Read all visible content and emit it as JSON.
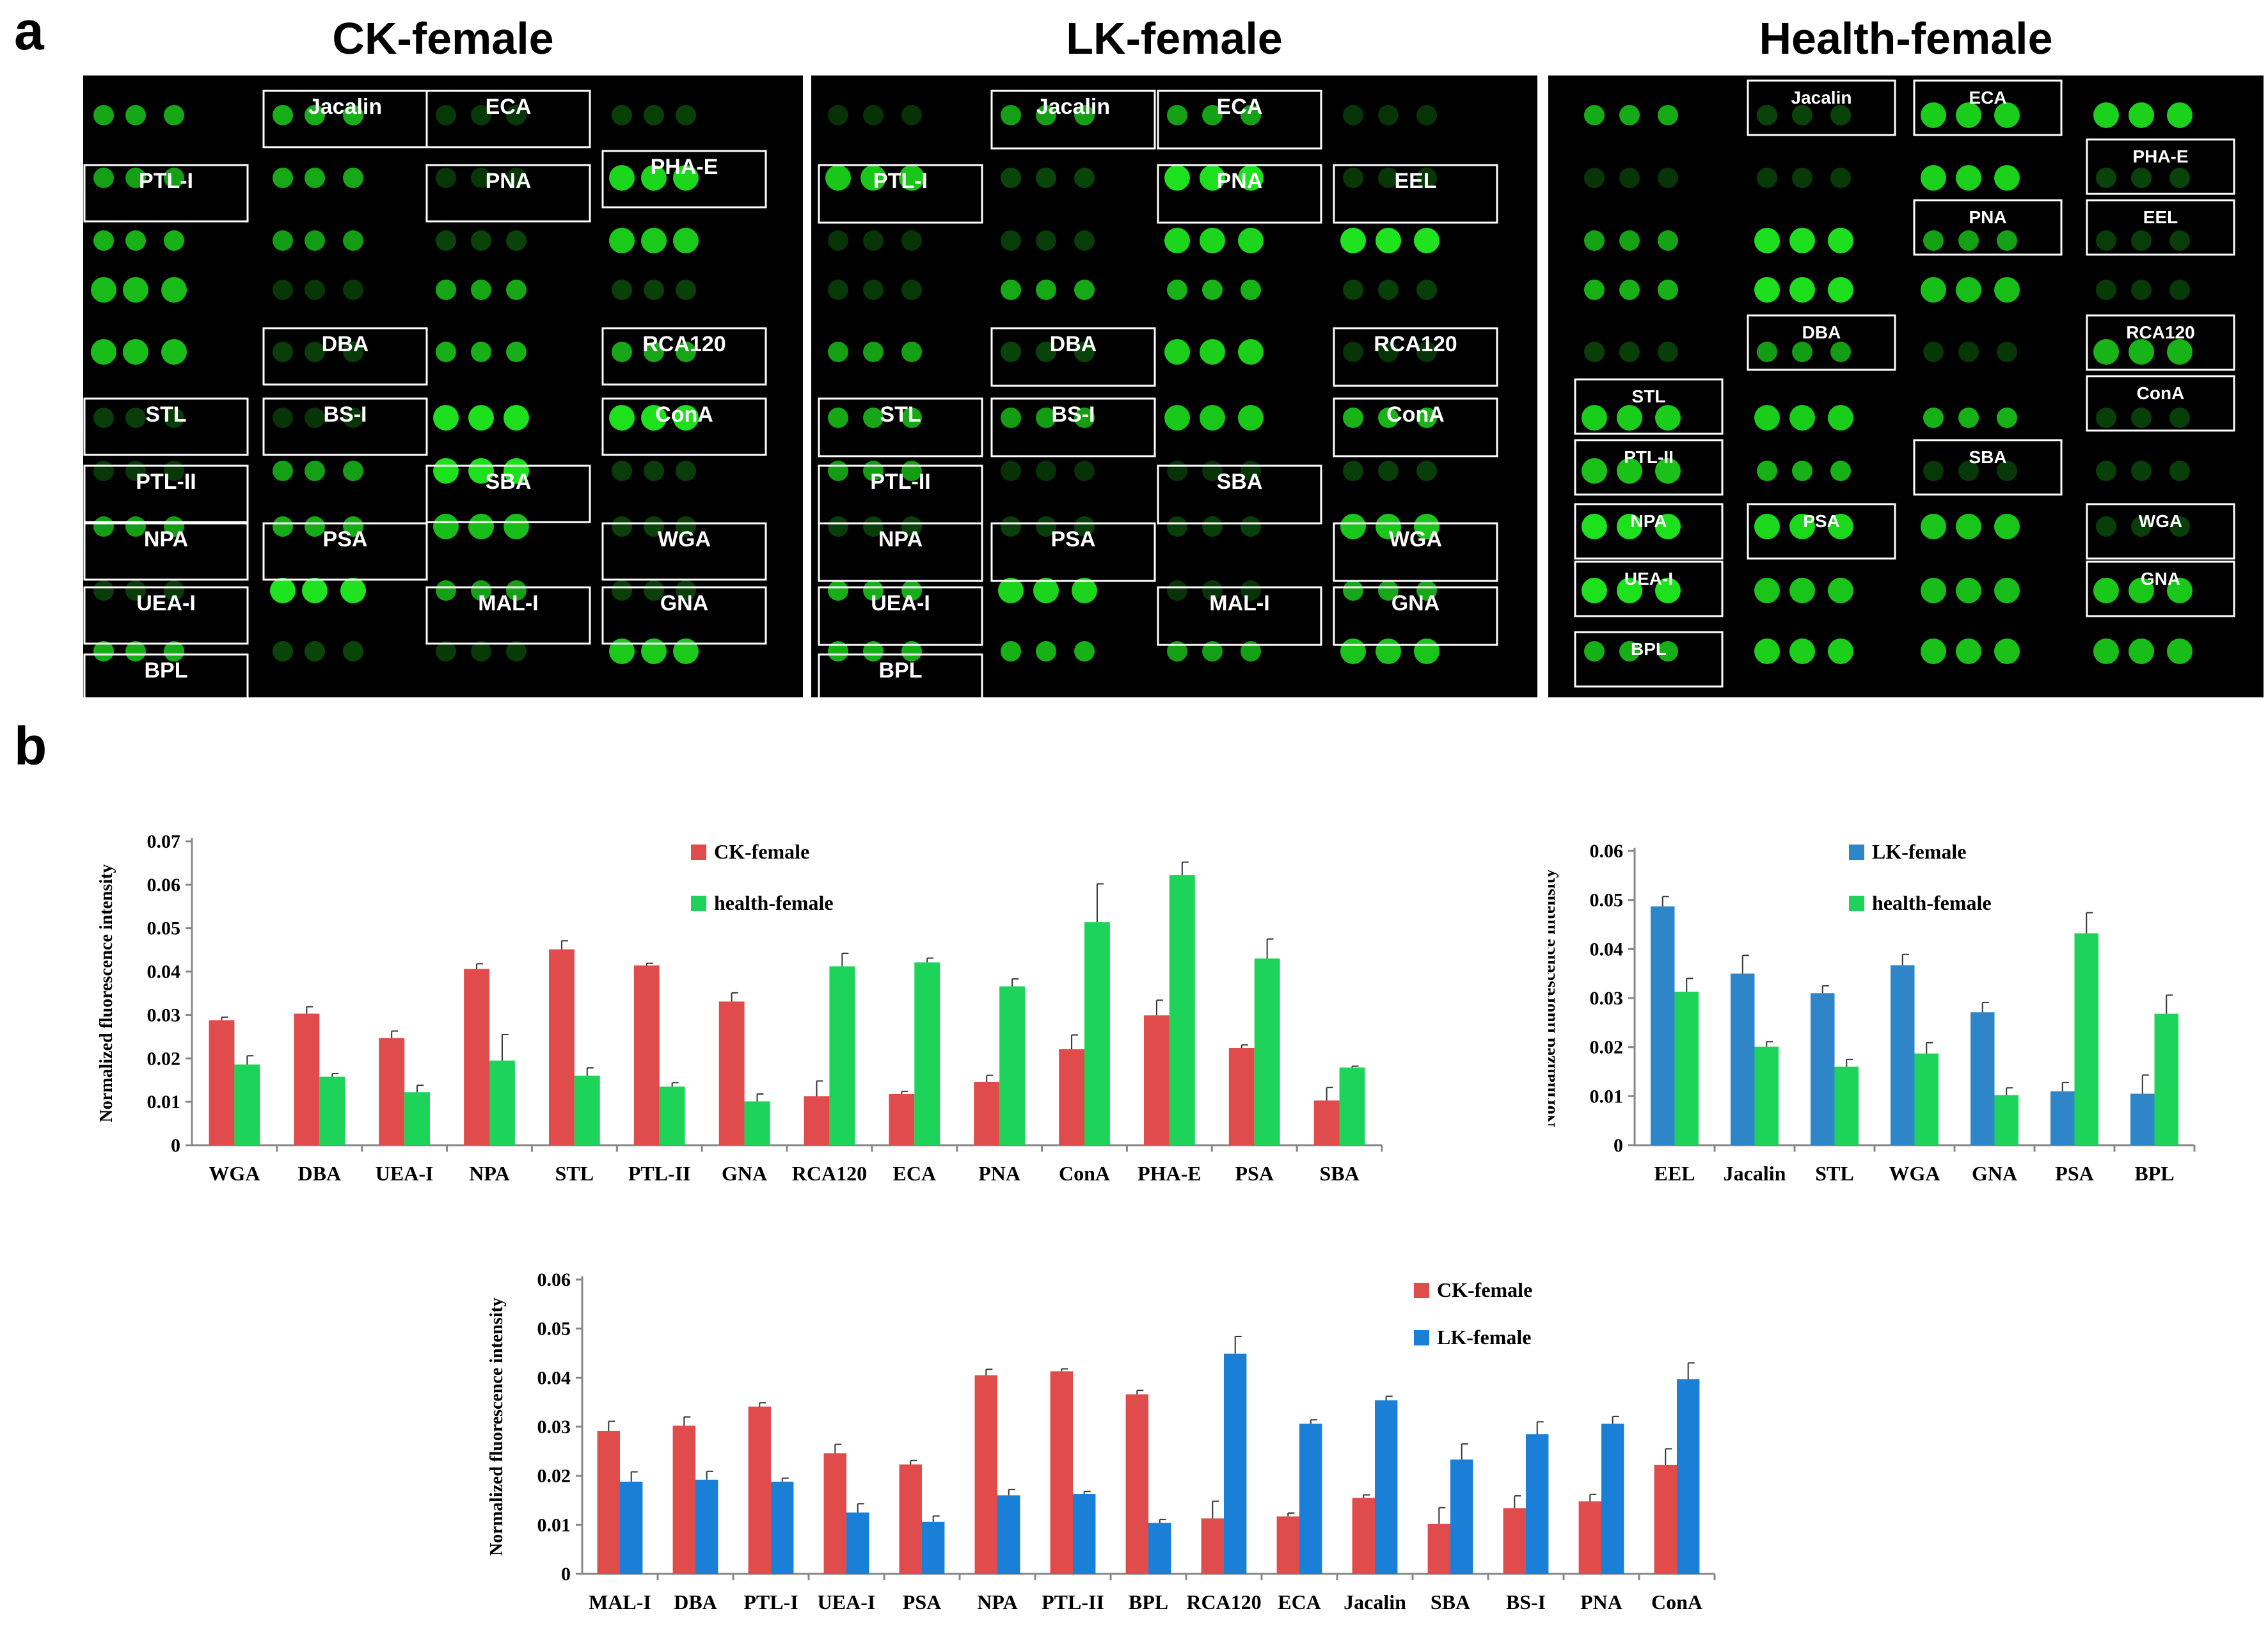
{
  "panel_labels": {
    "a": "a",
    "b": "b"
  },
  "colors": {
    "ck": "#e04b4b",
    "health": "#1ed35a",
    "lk_blue": "#2e86c8",
    "lk_blue2": "#1a7fd6",
    "spot_bright": "#1ee61e",
    "spot_dim": "#0e6e0e"
  },
  "arrays": [
    {
      "title": "CK-female",
      "labels": [
        "Jacalin",
        "ECA",
        "PTL-I",
        "PNA",
        "PHA-E",
        "DBA",
        "RCA120",
        "STL",
        "BS-I",
        "ConA",
        "PTL-II",
        "SBA",
        "NPA",
        "PSA",
        "WGA",
        "UEA-I",
        "MAL-I",
        "GNA",
        "BPL"
      ]
    },
    {
      "title": "LK-female",
      "labels": [
        "Jacalin",
        "ECA",
        "PTL-I",
        "PNA",
        "EEL",
        "DBA",
        "RCA120",
        "STL",
        "BS-I",
        "ConA",
        "PTL-II",
        "SBA",
        "NPA",
        "PSA",
        "WGA",
        "UEA-I",
        "MAL-I",
        "GNA",
        "BPL"
      ]
    },
    {
      "title": "Health-female",
      "labels": [
        "Jacalin",
        "ECA",
        "PHA-E",
        "PNA",
        "EEL",
        "DBA",
        "RCA120",
        "ConA",
        "STL",
        "SBA",
        "PTL-II",
        "NPA",
        "PSA",
        "WGA",
        "UEA-I",
        "GNA",
        "BPL"
      ]
    }
  ],
  "chart_data": [
    {
      "type": "bar",
      "categories": [
        "WGA",
        "DBA",
        "UEA-I",
        "NPA",
        "STL",
        "PTL-II",
        "GNA",
        "RCA120",
        "ECA",
        "PNA",
        "ConA",
        "PHA-E",
        "PSA",
        "SBA"
      ],
      "series": [
        {
          "name": "CK-female",
          "values": [
            0.0288,
            0.0303,
            0.0247,
            0.0406,
            0.0451,
            0.0414,
            0.0331,
            0.0113,
            0.0118,
            0.0146,
            0.0221,
            0.0299,
            0.0224,
            0.0103
          ],
          "errors": [
            0.0007,
            0.0016,
            0.0016,
            0.0012,
            0.002,
            0.0005,
            0.002,
            0.0035,
            0.0006,
            0.0015,
            0.0033,
            0.0035,
            0.0007,
            0.003
          ]
        },
        {
          "name": "health-female",
          "values": [
            0.0186,
            0.0158,
            0.0122,
            0.0195,
            0.016,
            0.0135,
            0.0101,
            0.0412,
            0.0421,
            0.0366,
            0.0514,
            0.0622,
            0.043,
            0.0179
          ],
          "errors": [
            0.002,
            0.0007,
            0.0016,
            0.006,
            0.0018,
            0.0009,
            0.0017,
            0.003,
            0.001,
            0.0017,
            0.0088,
            0.003,
            0.0045,
            0.0003
          ]
        }
      ],
      "xlabel": "",
      "ylabel": "Normalized fluorescence intensity",
      "ylim": [
        0,
        0.07
      ],
      "yticks": [
        "0",
        "0.01",
        "0.02",
        "0.03",
        "0.04",
        "0.05",
        "0.06",
        "0.07"
      ],
      "legend": "top-center",
      "grid": false
    },
    {
      "type": "bar",
      "categories": [
        "EEL",
        "Jacalin",
        "STL",
        "WGA",
        "GNA",
        "PSA",
        "BPL"
      ],
      "series": [
        {
          "name": "LK-female",
          "values": [
            0.0487,
            0.035,
            0.031,
            0.0367,
            0.0271,
            0.011,
            0.0105
          ],
          "errors": [
            0.002,
            0.0037,
            0.0015,
            0.0022,
            0.002,
            0.0018,
            0.0038
          ]
        },
        {
          "name": "health-female",
          "values": [
            0.0313,
            0.0201,
            0.016,
            0.0187,
            0.0102,
            0.0432,
            0.0268
          ],
          "errors": [
            0.0027,
            0.001,
            0.0015,
            0.0022,
            0.0015,
            0.0042,
            0.0038
          ]
        }
      ],
      "xlabel": "",
      "ylabel": "Normalized fluorescence intensity",
      "ylim": [
        0,
        0.06
      ],
      "yticks": [
        "0",
        "0.01",
        "0.02",
        "0.03",
        "0.04",
        "0.05",
        "0.06"
      ],
      "legend": "top-center",
      "grid": false
    },
    {
      "type": "bar",
      "categories": [
        "MAL-I",
        "DBA",
        "PTL-I",
        "UEA-I",
        "PSA",
        "NPA",
        "PTL-II",
        "BPL",
        "RCA120",
        "ECA",
        "Jacalin",
        "SBA",
        "BS-I",
        "PNA",
        "ConA"
      ],
      "series": [
        {
          "name": "CK-female",
          "values": [
            0.0291,
            0.0302,
            0.0341,
            0.0246,
            0.0223,
            0.0405,
            0.0413,
            0.0366,
            0.0113,
            0.0117,
            0.0155,
            0.0102,
            0.0134,
            0.0148,
            0.0222
          ],
          "errors": [
            0.002,
            0.0018,
            0.0008,
            0.0018,
            0.0008,
            0.0012,
            0.0005,
            0.0008,
            0.0035,
            0.0007,
            0.0006,
            0.0033,
            0.0025,
            0.0014,
            0.0033
          ]
        },
        {
          "name": "LK-female",
          "values": [
            0.0188,
            0.0192,
            0.0188,
            0.0125,
            0.0106,
            0.016,
            0.0163,
            0.0104,
            0.0449,
            0.0306,
            0.0354,
            0.0233,
            0.0285,
            0.0306,
            0.0397
          ],
          "errors": [
            0.002,
            0.0017,
            0.0007,
            0.0018,
            0.0012,
            0.0012,
            0.0005,
            0.0007,
            0.0035,
            0.0008,
            0.0008,
            0.0032,
            0.0025,
            0.0015,
            0.0033
          ]
        }
      ],
      "xlabel": "",
      "ylabel": "Normalized fluorescence intensity",
      "ylim": [
        0,
        0.06
      ],
      "yticks": [
        "0",
        "0.01",
        "0.02",
        "0.03",
        "0.04",
        "0.05",
        "0.06"
      ],
      "legend": "top-right",
      "grid": false
    }
  ]
}
